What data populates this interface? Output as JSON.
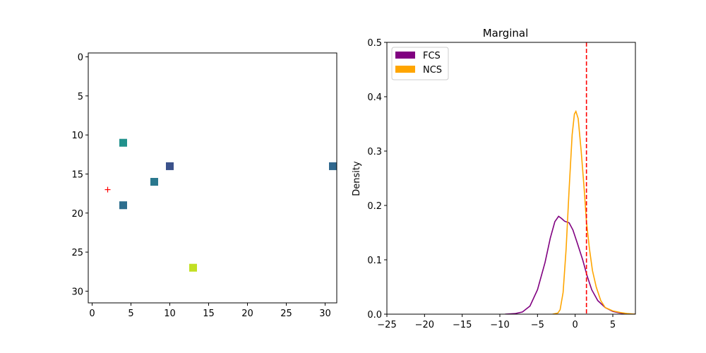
{
  "chart_data": [
    {
      "type": "heatmap",
      "title": "",
      "xlabel": "",
      "ylabel": "",
      "xlim": [
        -0.5,
        31.5
      ],
      "ylim": [
        31.5,
        -0.5
      ],
      "xticks": [
        0,
        5,
        10,
        15,
        20,
        25,
        30
      ],
      "yticks": [
        0,
        5,
        10,
        15,
        20,
        25,
        30
      ],
      "cells": [
        {
          "x": 4,
          "y": 11,
          "color": "#21918c"
        },
        {
          "x": 10,
          "y": 14,
          "color": "#3b528b"
        },
        {
          "x": 31,
          "y": 14,
          "color": "#31688e"
        },
        {
          "x": 8,
          "y": 16,
          "color": "#2a788e"
        },
        {
          "x": 4,
          "y": 19,
          "color": "#2d6e8e"
        },
        {
          "x": 13,
          "y": 27,
          "color": "#c2df23"
        }
      ],
      "marker": {
        "x": 2,
        "y": 17,
        "symbol": "+",
        "color": "#ff0000"
      }
    },
    {
      "type": "line",
      "title": "Marginal",
      "xlabel": "",
      "ylabel": "Density",
      "xlim": [
        -25,
        8
      ],
      "ylim": [
        0,
        0.5
      ],
      "xticks": [
        -25,
        -20,
        -15,
        -10,
        -5,
        0,
        5
      ],
      "yticks": [
        0.0,
        0.1,
        0.2,
        0.3,
        0.4,
        0.5
      ],
      "legend_position": "top-left",
      "vline": {
        "x": 1.5,
        "color": "#ff0000",
        "style": "dashed"
      },
      "series": [
        {
          "name": "FCS",
          "color": "#800080",
          "points": [
            [
              -9.3,
              0.0
            ],
            [
              -8,
              0.001
            ],
            [
              -7,
              0.004
            ],
            [
              -6,
              0.015
            ],
            [
              -5,
              0.045
            ],
            [
              -4,
              0.095
            ],
            [
              -3.3,
              0.14
            ],
            [
              -2.7,
              0.17
            ],
            [
              -2.2,
              0.18
            ],
            [
              -1.8,
              0.176
            ],
            [
              -1.4,
              0.171
            ],
            [
              -0.8,
              0.168
            ],
            [
              -0.3,
              0.155
            ],
            [
              0.3,
              0.13
            ],
            [
              1,
              0.1
            ],
            [
              1.6,
              0.07
            ],
            [
              2.2,
              0.045
            ],
            [
              3,
              0.025
            ],
            [
              4,
              0.012
            ],
            [
              5,
              0.005
            ],
            [
              6,
              0.002
            ],
            [
              7,
              0.0005
            ],
            [
              8,
              0.0
            ]
          ]
        },
        {
          "name": "NCS",
          "color": "#ffa500",
          "points": [
            [
              -3,
              0.0
            ],
            [
              -2.3,
              0.002
            ],
            [
              -2,
              0.008
            ],
            [
              -1.6,
              0.04
            ],
            [
              -1.2,
              0.12
            ],
            [
              -0.8,
              0.23
            ],
            [
              -0.4,
              0.33
            ],
            [
              -0.1,
              0.368
            ],
            [
              0.1,
              0.373
            ],
            [
              0.4,
              0.36
            ],
            [
              0.8,
              0.3
            ],
            [
              1.2,
              0.23
            ],
            [
              1.5,
              0.17
            ],
            [
              1.9,
              0.12
            ],
            [
              2.3,
              0.08
            ],
            [
              2.8,
              0.05
            ],
            [
              3.4,
              0.025
            ],
            [
              4,
              0.012
            ],
            [
              5,
              0.006
            ],
            [
              6,
              0.003
            ],
            [
              7,
              0.001
            ],
            [
              8,
              0.0
            ]
          ]
        }
      ]
    }
  ]
}
